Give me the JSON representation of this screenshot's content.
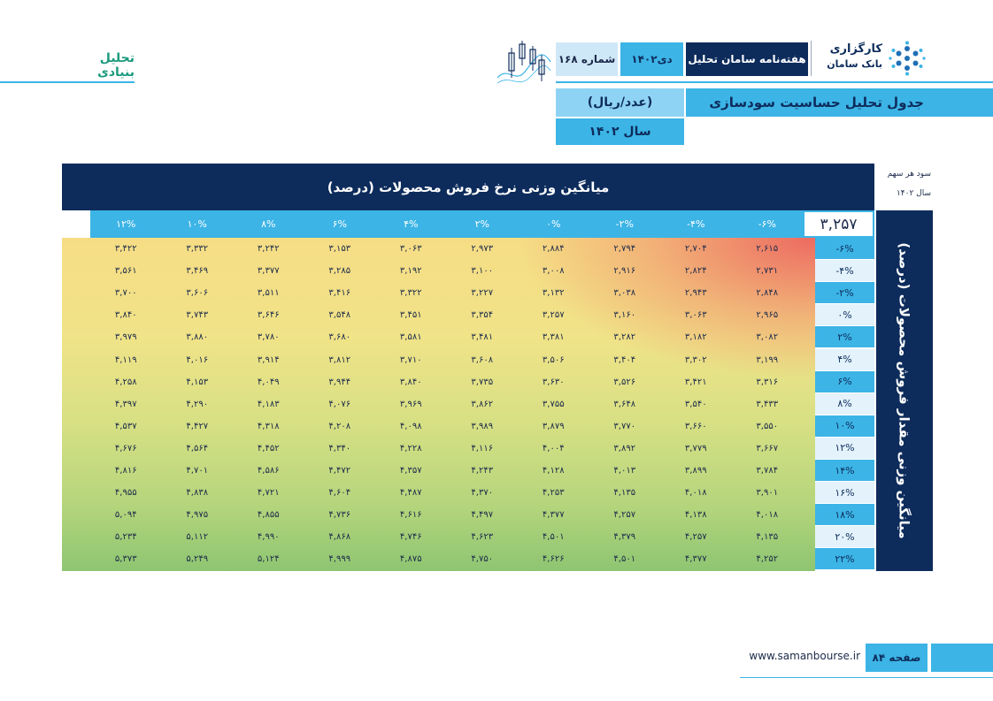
{
  "header": {
    "section": "تحلیل بنیادی",
    "issue_number": "شماره ۱۶۸",
    "month": "دی۱۴۰۲",
    "publication": "هفته‌نامه سامان تحلیل",
    "logo_line1": "کارگزاری",
    "logo_line2": "بانک سامان"
  },
  "titles": {
    "main": "جدول تحلیل حساسیت سودسازی",
    "unit": "(عدد/ریال)",
    "year": "سال ۱۴۰۲"
  },
  "table": {
    "top_label": "میانگین وزنی نرخ فروش محصولات (درصد)",
    "side_label": "میانگین وزنی مقدار فروش محصولات (درصد)",
    "corner_line1": "سود هر سهم",
    "corner_line2": "سال ۱۴۰۲",
    "base_value": "۳,۲۵۷",
    "columns": [
      "-۶%",
      "-۴%",
      "-۲%",
      "۰%",
      "۲%",
      "۴%",
      "۶%",
      "۸%",
      "۱۰%",
      "۱۲%"
    ],
    "rows": [
      {
        "label": "-۶%",
        "values": [
          "۲,۶۱۵",
          "۲,۷۰۴",
          "۲,۷۹۴",
          "۲,۸۸۴",
          "۲,۹۷۳",
          "۳,۰۶۳",
          "۳,۱۵۳",
          "۳,۲۴۲",
          "۳,۳۳۲",
          "۳,۴۲۲"
        ]
      },
      {
        "label": "-۴%",
        "values": [
          "۲,۷۳۱",
          "۲,۸۲۴",
          "۲,۹۱۶",
          "۳,۰۰۸",
          "۳,۱۰۰",
          "۳,۱۹۲",
          "۳,۲۸۵",
          "۳,۳۷۷",
          "۳,۴۶۹",
          "۳,۵۶۱"
        ]
      },
      {
        "label": "-۲%",
        "values": [
          "۲,۸۴۸",
          "۲,۹۴۳",
          "۳,۰۳۸",
          "۳,۱۳۲",
          "۳,۲۲۷",
          "۳,۳۲۲",
          "۳,۴۱۶",
          "۳,۵۱۱",
          "۳,۶۰۶",
          "۳,۷۰۰"
        ]
      },
      {
        "label": "۰%",
        "values": [
          "۲,۹۶۵",
          "۳,۰۶۳",
          "۳,۱۶۰",
          "۳,۲۵۷",
          "۳,۳۵۴",
          "۳,۴۵۱",
          "۳,۵۴۸",
          "۳,۶۴۶",
          "۳,۷۴۳",
          "۳,۸۴۰"
        ]
      },
      {
        "label": "۲%",
        "values": [
          "۳,۰۸۲",
          "۳,۱۸۲",
          "۳,۲۸۲",
          "۳,۳۸۱",
          "۳,۴۸۱",
          "۳,۵۸۱",
          "۳,۶۸۰",
          "۳,۷۸۰",
          "۳,۸۸۰",
          "۳,۹۷۹"
        ]
      },
      {
        "label": "۴%",
        "values": [
          "۳,۱۹۹",
          "۳,۳۰۲",
          "۳,۴۰۴",
          "۳,۵۰۶",
          "۳,۶۰۸",
          "۳,۷۱۰",
          "۳,۸۱۲",
          "۳,۹۱۴",
          "۴,۰۱۶",
          "۴,۱۱۹"
        ]
      },
      {
        "label": "۶%",
        "values": [
          "۳,۳۱۶",
          "۳,۴۲۱",
          "۳,۵۲۶",
          "۳,۶۳۰",
          "۳,۷۳۵",
          "۳,۸۴۰",
          "۳,۹۴۴",
          "۴,۰۴۹",
          "۴,۱۵۳",
          "۴,۲۵۸"
        ]
      },
      {
        "label": "۸%",
        "values": [
          "۳,۴۳۳",
          "۳,۵۴۰",
          "۳,۶۴۸",
          "۳,۷۵۵",
          "۳,۸۶۲",
          "۳,۹۶۹",
          "۴,۰۷۶",
          "۴,۱۸۳",
          "۴,۲۹۰",
          "۴,۳۹۷"
        ]
      },
      {
        "label": "۱۰%",
        "values": [
          "۳,۵۵۰",
          "۳,۶۶۰",
          "۳,۷۷۰",
          "۳,۸۷۹",
          "۳,۹۸۹",
          "۴,۰۹۸",
          "۴,۲۰۸",
          "۴,۳۱۸",
          "۴,۴۲۷",
          "۴,۵۳۷"
        ]
      },
      {
        "label": "۱۲%",
        "values": [
          "۳,۶۶۷",
          "۳,۷۷۹",
          "۳,۸۹۲",
          "۴,۰۰۴",
          "۴,۱۱۶",
          "۴,۲۲۸",
          "۴,۳۴۰",
          "۴,۴۵۲",
          "۴,۵۶۴",
          "۴,۶۷۶"
        ]
      },
      {
        "label": "۱۴%",
        "values": [
          "۳,۷۸۴",
          "۳,۸۹۹",
          "۴,۰۱۳",
          "۴,۱۲۸",
          "۴,۲۴۳",
          "۴,۳۵۷",
          "۴,۴۷۲",
          "۴,۵۸۶",
          "۴,۷۰۱",
          "۴,۸۱۶"
        ]
      },
      {
        "label": "۱۶%",
        "values": [
          "۳,۹۰۱",
          "۴,۰۱۸",
          "۴,۱۳۵",
          "۴,۲۵۳",
          "۴,۳۷۰",
          "۴,۴۸۷",
          "۴,۶۰۴",
          "۴,۷۲۱",
          "۴,۸۳۸",
          "۴,۹۵۵"
        ]
      },
      {
        "label": "۱۸%",
        "values": [
          "۴,۰۱۸",
          "۴,۱۳۸",
          "۴,۲۵۷",
          "۴,۳۷۷",
          "۴,۴۹۷",
          "۴,۶۱۶",
          "۴,۷۳۶",
          "۴,۸۵۵",
          "۴,۹۷۵",
          "۵,۰۹۴"
        ]
      },
      {
        "label": "۲۰%",
        "values": [
          "۴,۱۳۵",
          "۴,۲۵۷",
          "۴,۳۷۹",
          "۴,۵۰۱",
          "۴,۶۲۳",
          "۴,۷۴۶",
          "۴,۸۶۸",
          "۴,۹۹۰",
          "۵,۱۱۲",
          "۵,۲۳۴"
        ]
      },
      {
        "label": "۲۲%",
        "values": [
          "۴,۲۵۲",
          "۴,۳۷۷",
          "۴,۵۰۱",
          "۴,۶۲۶",
          "۴,۷۵۰",
          "۴,۸۷۵",
          "۴,۹۹۹",
          "۵,۱۲۴",
          "۵,۲۴۹",
          "۵,۳۷۳"
        ]
      }
    ]
  },
  "footer": {
    "page": "صفحه ۸۴",
    "website": "www.samanbourse.ir"
  },
  "colors": {
    "navy": "#0d2c5c",
    "accent": "#3cb4e6",
    "section_green": "#1a9a7c"
  }
}
